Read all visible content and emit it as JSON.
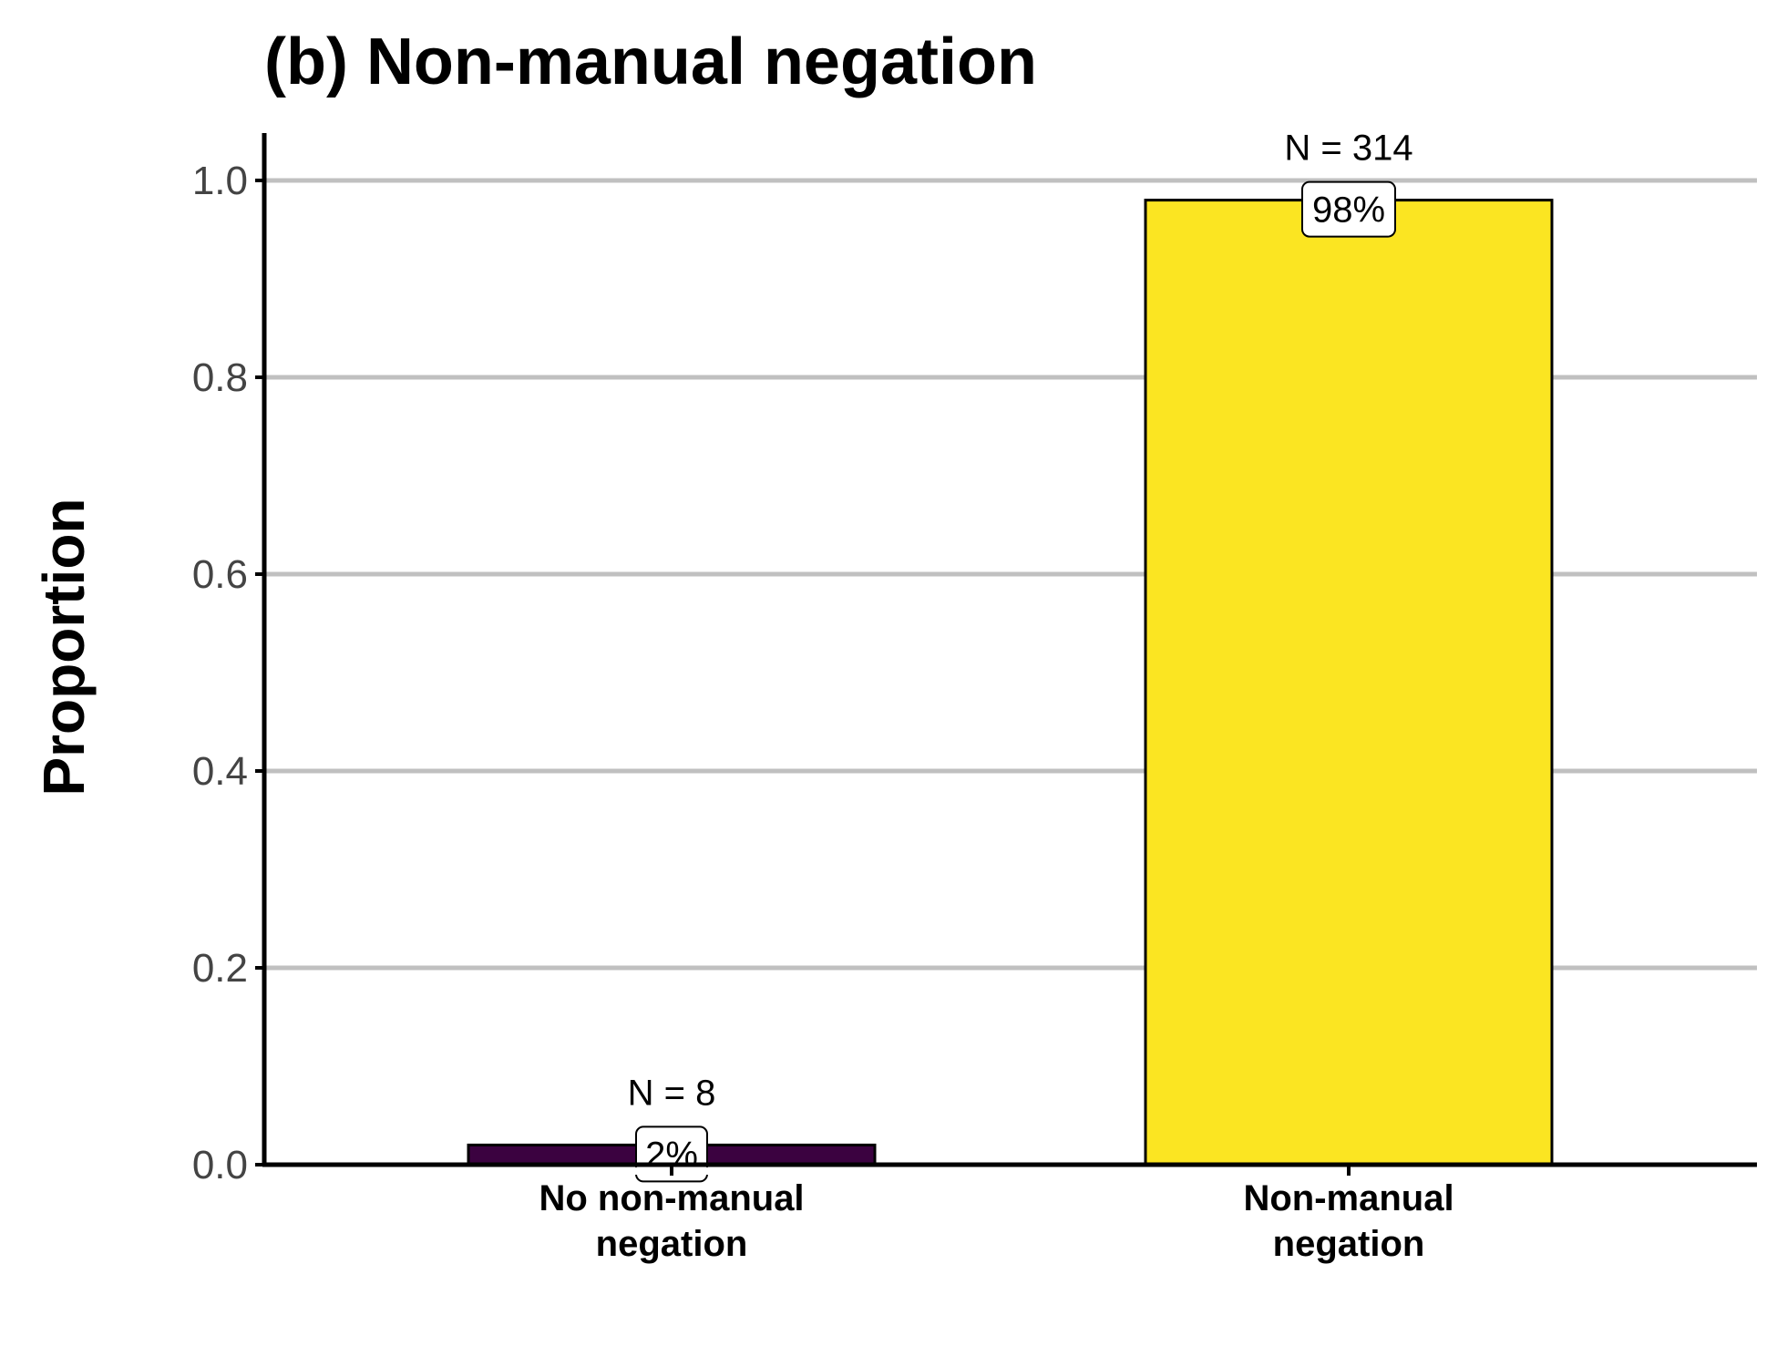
{
  "chart_data": {
    "type": "bar",
    "title": "(b) Non-manual negation",
    "ylabel": "Proportion",
    "xlabel": "",
    "ylim": [
      0,
      1.05
    ],
    "yticks": [
      "0.0",
      "0.2",
      "0.4",
      "0.6",
      "0.8",
      "1.0"
    ],
    "ytick_values": [
      0,
      0.2,
      0.4,
      0.6,
      0.8,
      1.0
    ],
    "grid": "horizontal",
    "legend": "none",
    "categories": [
      [
        "No non-manual",
        "negation"
      ],
      [
        "Non-manual",
        "negation"
      ]
    ],
    "values": [
      0.02,
      0.98
    ],
    "n_labels": [
      "N = 8",
      "N = 314"
    ],
    "percent_labels": [
      "2%",
      "98%"
    ],
    "colors": [
      "#3b0240",
      "#fbe522"
    ],
    "grid_color": "#c0c0c0",
    "axis_color": "#000000"
  }
}
